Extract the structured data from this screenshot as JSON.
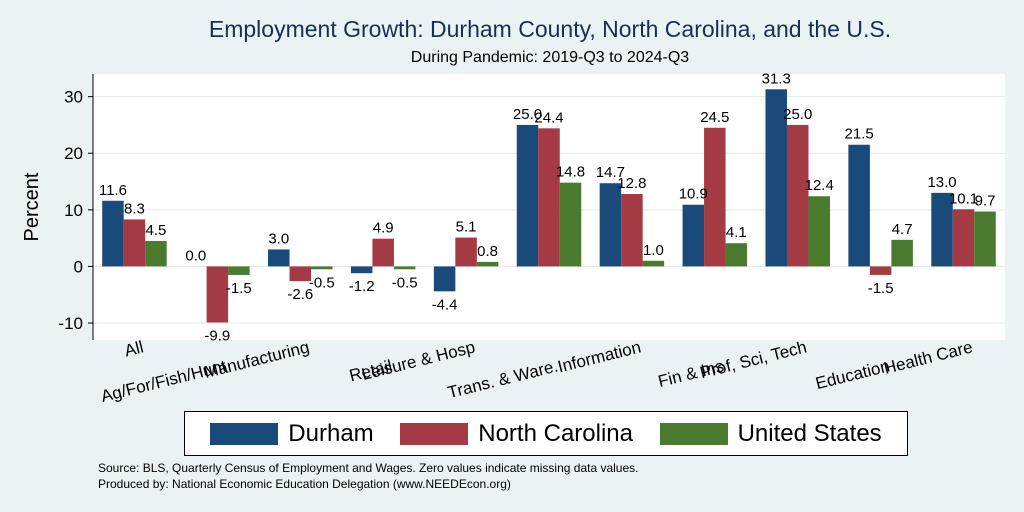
{
  "chart_data": {
    "type": "bar",
    "title": "Employment Growth: Durham County, North Carolina, and the U.S.",
    "subtitle": "During Pandemic: 2019-Q3 to 2024-Q3",
    "xlabel": "",
    "ylabel": "Percent",
    "ylim": [
      -13,
      34
    ],
    "yticks": [
      -10,
      0,
      10,
      20,
      30
    ],
    "grid": true,
    "legend_position": "bottom",
    "categories": [
      "All",
      "Ag/For/Fish/Hunt",
      "Manufacturing",
      "Retail",
      "Leisure & Hosp",
      "Trans. & Ware.",
      "Information",
      "Fin & Ins",
      "Prof, Sci, Tech",
      "Education",
      "Health Care"
    ],
    "series": [
      {
        "name": "Durham",
        "color": "#1a4a7a",
        "values": [
          11.6,
          0.0,
          3.0,
          -1.2,
          -4.4,
          25.0,
          14.7,
          10.9,
          31.3,
          21.5,
          13.0
        ]
      },
      {
        "name": "North Carolina",
        "color": "#a33a44",
        "values": [
          8.3,
          -9.9,
          -2.6,
          4.9,
          5.1,
          24.4,
          12.8,
          24.5,
          25.0,
          -1.5,
          10.1
        ]
      },
      {
        "name": "United States",
        "color": "#4a7a2e",
        "values": [
          4.5,
          -1.5,
          -0.5,
          -0.5,
          0.8,
          14.8,
          1.0,
          4.1,
          12.4,
          4.7,
          9.7
        ]
      }
    ]
  },
  "footer": {
    "source": "Source: BLS, Quarterly Census of Employment and Wages. Zero values indicate missing data values.",
    "produced_by": "Produced by: National Economic Education Delegation (www.NEEDEcon.org)"
  }
}
